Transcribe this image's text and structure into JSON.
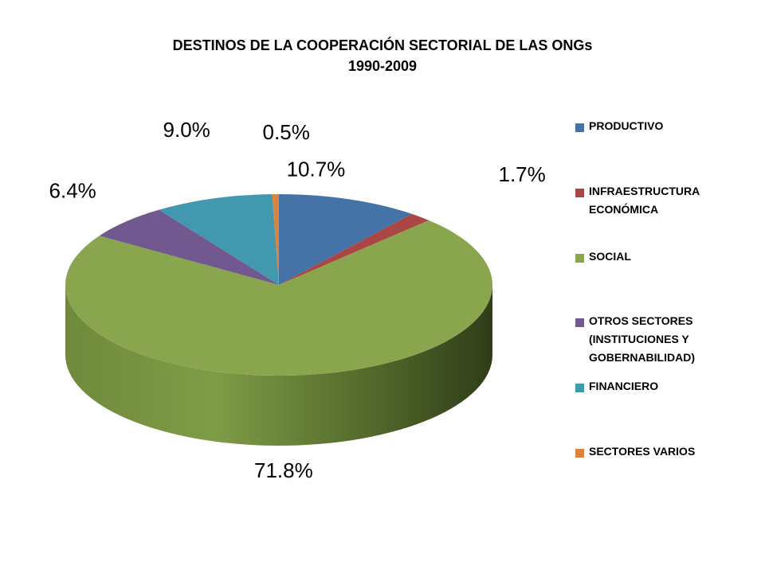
{
  "chart_data": {
    "type": "pie",
    "title": "DESTINOS DE LA COOPERACIÓN SECTORIAL DE LAS ONGs",
    "subtitle": "1990-2009",
    "legend_position": "right",
    "categories": [
      "PRODUCTIVO",
      "INFRAESTRUCTURA ECONÓMICA",
      "SOCIAL",
      "OTROS SECTORES (INSTITUCIONES Y GOBERNABILIDAD)",
      "FINANCIERO",
      "SECTORES VARIOS"
    ],
    "values": [
      10.7,
      1.7,
      71.8,
      6.4,
      9.0,
      0.5
    ],
    "data_labels": [
      "10.7%",
      "1.7%",
      "71.8%",
      "6.4%",
      "9.0%",
      "0.5%"
    ],
    "legend_labels": [
      "PRODUCTIVO",
      "INFRAESTRUCTURA\nECONÓMICA",
      "SOCIAL",
      "OTROS SECTORES\n(INSTITUCIONES Y\nGOBERNABILIDAD)",
      "FINANCIERO",
      "SECTORES VARIOS"
    ],
    "colors": [
      "#4572A7",
      "#AA4643",
      "#89A54E",
      "#71588F",
      "#4198AF",
      "#DB843D"
    ]
  }
}
